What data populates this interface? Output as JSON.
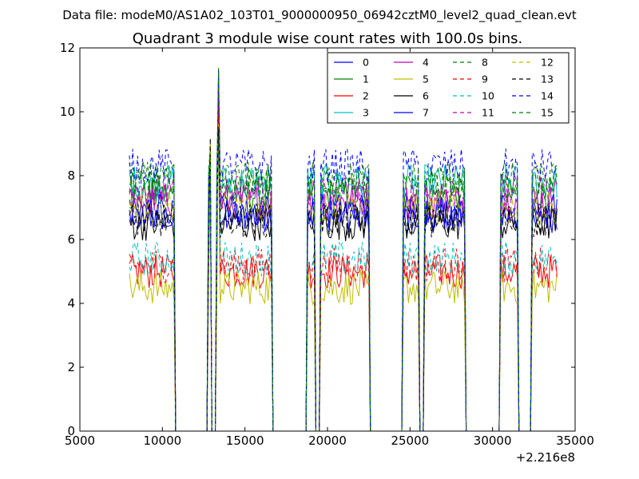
{
  "chart_data": {
    "type": "line",
    "suptitle": "Data file: modeM0/AS1A02_103T01_9000000950_06942cztM0_level2_quad_clean.evt",
    "title": "Quadrant 3 module wise count rates with 100.0s bins.",
    "xlabel": "",
    "ylabel": "",
    "x_offset_label": "+2.216e8",
    "xlim": [
      5000,
      35000
    ],
    "ylim": [
      0,
      12
    ],
    "xticks": [
      5000,
      10000,
      15000,
      20000,
      25000,
      30000,
      35000
    ],
    "yticks": [
      0,
      2,
      4,
      6,
      8,
      10,
      12
    ],
    "xtick_labels": [
      "5000",
      "10000",
      "15000",
      "20000",
      "25000",
      "30000",
      "35000"
    ],
    "ytick_labels": [
      "0",
      "2",
      "4",
      "6",
      "8",
      "10",
      "12"
    ],
    "grid": false,
    "legend_position": "top-right",
    "legend_columns": 4,
    "bin_seconds": 100,
    "x_start": 8000,
    "x_end": 33900,
    "active_intervals": [
      [
        8000,
        10700
      ],
      [
        12800,
        12900
      ],
      [
        13300,
        16600
      ],
      [
        18800,
        19200
      ],
      [
        19600,
        22500
      ],
      [
        24600,
        25500
      ],
      [
        25900,
        28300
      ],
      [
        30500,
        31500
      ],
      [
        32400,
        33900
      ]
    ],
    "spike_peaks": [
      [
        12900,
        9.2
      ],
      [
        13400,
        11.4
      ]
    ],
    "series": [
      {
        "name": "0",
        "color": "#0000ff",
        "dash": "solid",
        "level": 6.75
      },
      {
        "name": "1",
        "color": "#008000",
        "dash": "solid",
        "level": 7.4
      },
      {
        "name": "2",
        "color": "#ff0000",
        "dash": "solid",
        "level": 5.0
      },
      {
        "name": "3",
        "color": "#00bfbf",
        "dash": "solid",
        "level": 7.8
      },
      {
        "name": "4",
        "color": "#bf00bf",
        "dash": "solid",
        "level": 7.2
      },
      {
        "name": "5",
        "color": "#bfbf00",
        "dash": "solid",
        "level": 4.5
      },
      {
        "name": "6",
        "color": "#000000",
        "dash": "solid",
        "level": 6.5
      },
      {
        "name": "7",
        "color": "#0000ff",
        "dash": "solid",
        "level": 6.9
      },
      {
        "name": "8",
        "color": "#008000",
        "dash": "dashed",
        "level": 7.7
      },
      {
        "name": "9",
        "color": "#ff0000",
        "dash": "dashed",
        "level": 5.2
      },
      {
        "name": "10",
        "color": "#00bfbf",
        "dash": "dashed",
        "level": 5.4
      },
      {
        "name": "11",
        "color": "#bf00bf",
        "dash": "dashed",
        "level": 7.5
      },
      {
        "name": "12",
        "color": "#bfbf00",
        "dash": "dashed",
        "level": 7.0
      },
      {
        "name": "13",
        "color": "#000000",
        "dash": "dashed",
        "level": 6.6
      },
      {
        "name": "14",
        "color": "#0000ff",
        "dash": "dashed",
        "level": 8.3
      },
      {
        "name": "15",
        "color": "#008000",
        "dash": "dashed",
        "level": 7.9
      }
    ]
  }
}
